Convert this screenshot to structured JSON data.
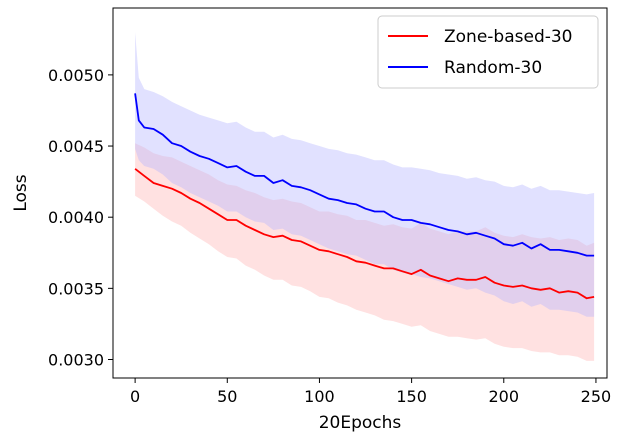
{
  "chart_data": {
    "type": "line",
    "xlabel": "20Epochs",
    "ylabel": "Loss",
    "xlim": [
      -12,
      256
    ],
    "ylim": [
      0.00287,
      0.00547
    ],
    "xticks": [
      0,
      50,
      100,
      150,
      200,
      250
    ],
    "xtick_labels": [
      "0",
      "50",
      "100",
      "150",
      "200",
      "250"
    ],
    "yticks": [
      0.003,
      0.0035,
      0.004,
      0.0045,
      0.005
    ],
    "ytick_labels": [
      "0.0030",
      "0.0035",
      "0.0040",
      "0.0045",
      "0.0050"
    ],
    "grid": false,
    "legend_position": "top-right",
    "series": [
      {
        "name": "Zone-based-30",
        "color": "#ff0000",
        "band_color": "#ffb3b3",
        "x": [
          0,
          5,
          10,
          15,
          20,
          25,
          30,
          35,
          40,
          45,
          50,
          55,
          60,
          65,
          70,
          75,
          80,
          85,
          90,
          95,
          100,
          105,
          110,
          115,
          120,
          125,
          130,
          135,
          140,
          145,
          150,
          155,
          160,
          165,
          170,
          175,
          180,
          185,
          190,
          195,
          200,
          205,
          210,
          215,
          220,
          225,
          230,
          235,
          240,
          245,
          249
        ],
        "mean": [
          0.00434,
          0.00429,
          0.00424,
          0.00422,
          0.0042,
          0.00417,
          0.00413,
          0.0041,
          0.00406,
          0.00402,
          0.00398,
          0.00398,
          0.00394,
          0.00391,
          0.00388,
          0.00386,
          0.00387,
          0.00384,
          0.00383,
          0.0038,
          0.00377,
          0.00376,
          0.00374,
          0.00372,
          0.00369,
          0.00368,
          0.00366,
          0.00364,
          0.00364,
          0.00362,
          0.0036,
          0.00363,
          0.00359,
          0.00357,
          0.00355,
          0.00357,
          0.00356,
          0.00356,
          0.00358,
          0.00354,
          0.00352,
          0.00351,
          0.00352,
          0.0035,
          0.00349,
          0.0035,
          0.00347,
          0.00348,
          0.00347,
          0.00343,
          0.00344
        ],
        "upper": [
          0.00452,
          0.00449,
          0.00445,
          0.00443,
          0.00442,
          0.00439,
          0.00436,
          0.00433,
          0.0043,
          0.00426,
          0.00423,
          0.00422,
          0.00419,
          0.00417,
          0.00414,
          0.00412,
          0.00413,
          0.00411,
          0.0041,
          0.00407,
          0.00404,
          0.00404,
          0.00402,
          0.00401,
          0.00398,
          0.00398,
          0.00396,
          0.00394,
          0.00395,
          0.00393,
          0.00392,
          0.00396,
          0.00392,
          0.0039,
          0.00388,
          0.0039,
          0.0039,
          0.0039,
          0.00393,
          0.00389,
          0.00387,
          0.00386,
          0.00388,
          0.00386,
          0.00385,
          0.00386,
          0.00384,
          0.00385,
          0.00384,
          0.0038,
          0.00382
        ],
        "lower": [
          0.00415,
          0.00411,
          0.00406,
          0.00401,
          0.00397,
          0.00394,
          0.00389,
          0.00385,
          0.00381,
          0.00376,
          0.00372,
          0.00371,
          0.00366,
          0.00363,
          0.00359,
          0.00356,
          0.00356,
          0.00352,
          0.00351,
          0.00348,
          0.00344,
          0.00343,
          0.0034,
          0.00338,
          0.00335,
          0.00333,
          0.00331,
          0.00328,
          0.00327,
          0.00325,
          0.00323,
          0.00324,
          0.0032,
          0.00318,
          0.00316,
          0.00316,
          0.00315,
          0.00314,
          0.00315,
          0.00311,
          0.00309,
          0.00308,
          0.00308,
          0.00306,
          0.00305,
          0.00305,
          0.00303,
          0.00303,
          0.00302,
          0.00299,
          0.00299
        ]
      },
      {
        "name": "Random-30",
        "color": "#0000ff",
        "band_color": "#b3b3ff",
        "x": [
          0,
          2,
          5,
          10,
          15,
          20,
          25,
          30,
          35,
          40,
          45,
          50,
          55,
          60,
          65,
          70,
          75,
          80,
          85,
          90,
          95,
          100,
          105,
          110,
          115,
          120,
          125,
          130,
          135,
          140,
          145,
          150,
          155,
          160,
          165,
          170,
          175,
          180,
          185,
          190,
          195,
          200,
          205,
          210,
          215,
          220,
          225,
          230,
          235,
          240,
          245,
          249
        ],
        "mean": [
          0.00487,
          0.00468,
          0.00463,
          0.00462,
          0.00458,
          0.00452,
          0.0045,
          0.00446,
          0.00443,
          0.00441,
          0.00438,
          0.00435,
          0.00436,
          0.00432,
          0.00429,
          0.00429,
          0.00424,
          0.00426,
          0.00422,
          0.00421,
          0.00419,
          0.00416,
          0.00413,
          0.00412,
          0.0041,
          0.00409,
          0.00406,
          0.00404,
          0.00404,
          0.004,
          0.00398,
          0.00398,
          0.00396,
          0.00395,
          0.00393,
          0.00391,
          0.0039,
          0.00388,
          0.00389,
          0.00387,
          0.00385,
          0.00381,
          0.0038,
          0.00382,
          0.00378,
          0.00381,
          0.00377,
          0.00377,
          0.00376,
          0.00375,
          0.00373,
          0.00373
        ],
        "upper": [
          0.0053,
          0.00498,
          0.0049,
          0.00488,
          0.00485,
          0.00481,
          0.00478,
          0.00475,
          0.00472,
          0.0047,
          0.00468,
          0.00466,
          0.00467,
          0.00463,
          0.0046,
          0.0046,
          0.00456,
          0.00458,
          0.00455,
          0.00454,
          0.00452,
          0.0045,
          0.00448,
          0.00447,
          0.00445,
          0.00444,
          0.00442,
          0.0044,
          0.0044,
          0.00437,
          0.00435,
          0.00435,
          0.00434,
          0.00433,
          0.00431,
          0.0043,
          0.00429,
          0.00427,
          0.00428,
          0.00426,
          0.00425,
          0.00422,
          0.00421,
          0.00423,
          0.0042,
          0.00422,
          0.00419,
          0.00419,
          0.00418,
          0.00417,
          0.00416,
          0.00417
        ],
        "lower": [
          0.00448,
          0.0044,
          0.00436,
          0.00434,
          0.0043,
          0.00424,
          0.00421,
          0.00417,
          0.00414,
          0.00411,
          0.00408,
          0.00404,
          0.00404,
          0.004,
          0.00397,
          0.00396,
          0.00391,
          0.00392,
          0.00388,
          0.00387,
          0.00384,
          0.00381,
          0.00378,
          0.00376,
          0.00374,
          0.00373,
          0.0037,
          0.00367,
          0.00367,
          0.00363,
          0.00361,
          0.0036,
          0.00358,
          0.00357,
          0.00355,
          0.00353,
          0.00351,
          0.00349,
          0.0035,
          0.00347,
          0.00345,
          0.00341,
          0.00339,
          0.00341,
          0.00337,
          0.00339,
          0.00335,
          0.00335,
          0.00334,
          0.00333,
          0.0033,
          0.0033
        ]
      }
    ]
  }
}
